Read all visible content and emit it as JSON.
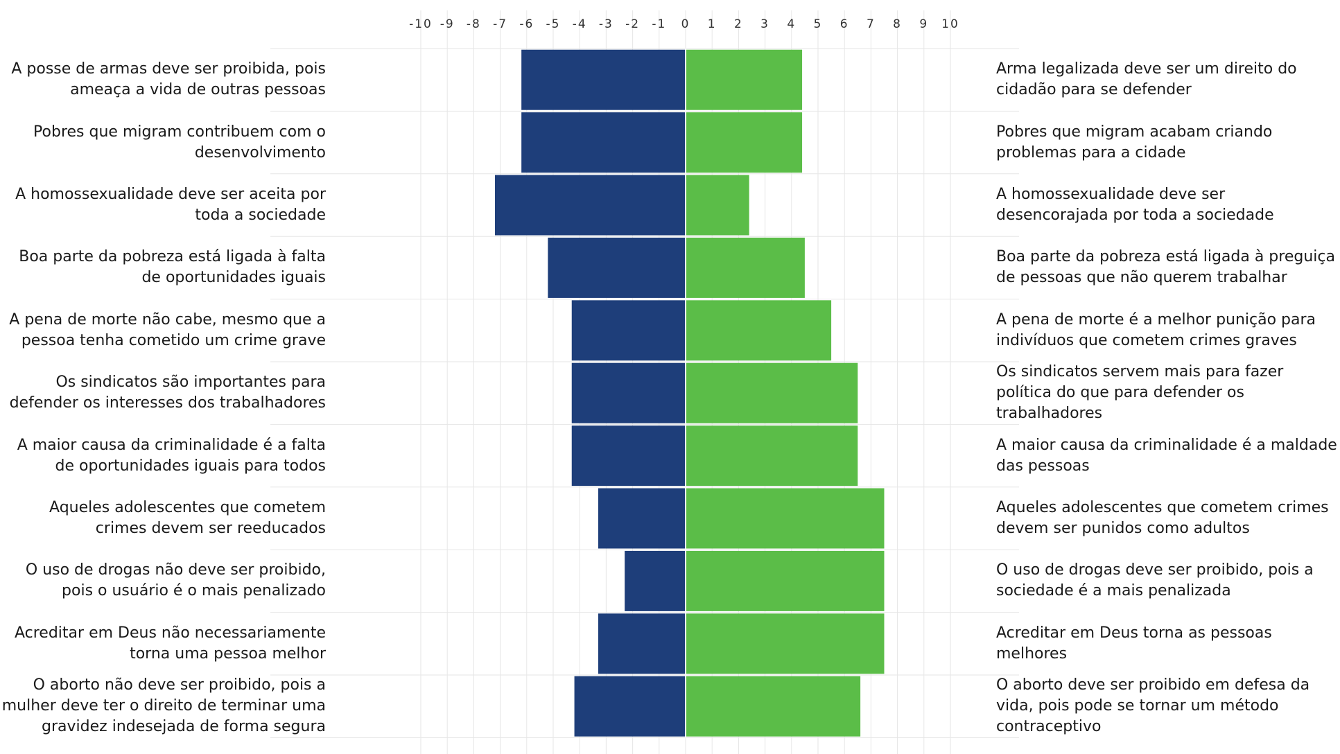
{
  "chart_data": {
    "type": "bar",
    "orientation": "horizontal-diverging",
    "xlim": [
      -10,
      10
    ],
    "x_ticks": [
      "-10",
      "-9",
      "-8",
      "-7",
      "-6",
      "-5",
      "-4",
      "-3",
      "-2",
      "-1",
      "0",
      "1",
      "2",
      "3",
      "4",
      "5",
      "6",
      "7",
      "8",
      "9",
      "10"
    ],
    "grid": true,
    "colors": {
      "negative": "#1e3e7a",
      "positive": "#5bbd48",
      "grid": "#e6e6e6"
    },
    "rows": [
      {
        "left_label": "A posse de armas deve ser proibida, pois ameaça a vida de outras pessoas",
        "right_label": "Arma legalizada deve ser um direito do cidadão para se defender",
        "negative": -6.2,
        "positive": 4.4
      },
      {
        "left_label": "Pobres que migram contribuem com o desenvolvimento",
        "right_label": "Pobres que migram acabam criando problemas para a cidade",
        "negative": -6.2,
        "positive": 4.4
      },
      {
        "left_label": "A homossexualidade deve ser aceita por toda a sociedade",
        "right_label": "A homossexualidade deve ser desencorajada por toda a sociedade",
        "negative": -7.2,
        "positive": 2.4
      },
      {
        "left_label": "Boa parte da pobreza está ligada à falta de oportunidades iguais",
        "right_label": "Boa parte da pobreza está ligada à preguiça de pessoas que não querem trabalhar",
        "negative": -5.2,
        "positive": 4.5
      },
      {
        "left_label": "A pena de morte não cabe, mesmo que a pessoa tenha cometido um crime grave",
        "right_label": "A pena de morte é a melhor punição para indivíduos que cometem crimes graves",
        "negative": -4.3,
        "positive": 5.5
      },
      {
        "left_label": "Os sindicatos são importantes para defender os interesses dos trabalhadores",
        "right_label": "Os sindicatos servem mais para fazer política do que para defender os trabalhadores",
        "negative": -4.3,
        "positive": 6.5
      },
      {
        "left_label": "A maior causa da criminalidade é a falta de oportunidades iguais para todos",
        "right_label": "A maior causa da criminalidade é a maldade das pessoas",
        "negative": -4.3,
        "positive": 6.5
      },
      {
        "left_label": "Aqueles adolescentes que cometem crimes devem ser reeducados",
        "right_label": "Aqueles adolescentes que cometem crimes devem ser punidos como adultos",
        "negative": -3.3,
        "positive": 7.5
      },
      {
        "left_label": "O uso de drogas não deve ser proibido, pois o usuário é o mais penalizado",
        "right_label": "O uso de drogas deve ser proibido, pois a sociedade é a mais penalizada",
        "negative": -2.3,
        "positive": 7.5
      },
      {
        "left_label": "Acreditar em Deus não necessariamente torna uma pessoa melhor",
        "right_label": "Acreditar em Deus torna as pessoas melhores",
        "negative": -3.3,
        "positive": 7.5
      },
      {
        "left_label": "O aborto não deve ser proibido, pois a mulher deve ter o direito de terminar uma gravidez indesejada de forma segura",
        "right_label": "O aborto deve ser proibido em defesa da vida, pois pode se tornar um método contraceptivo",
        "negative": -4.2,
        "positive": 6.6
      }
    ]
  }
}
